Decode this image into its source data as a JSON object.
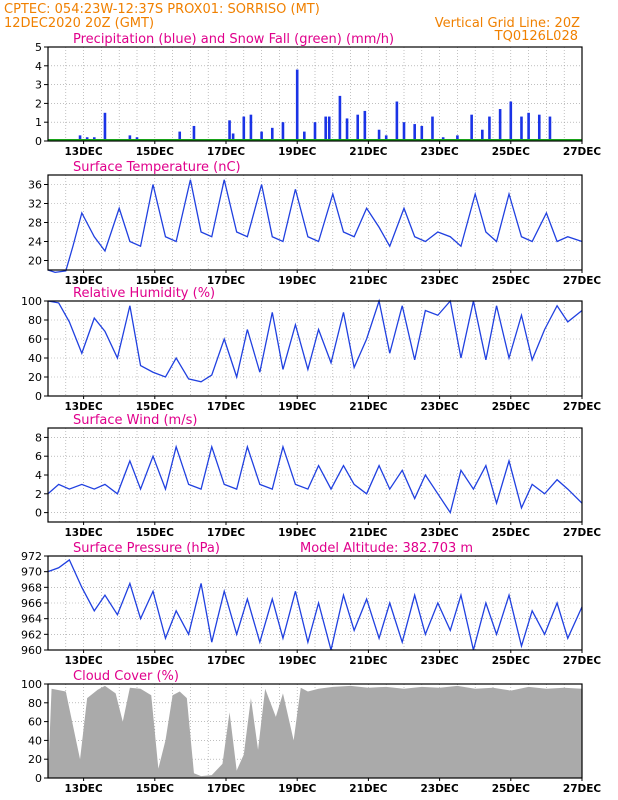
{
  "header": {
    "line1": "CPTEC:   054:23W-12:37S   PROX01: SORRISO (MT)",
    "line2_left": "12DEC2020 20Z (GMT)",
    "line2_right": "Vertical Grid Line: 20Z",
    "run_id": "TQ0126L028"
  },
  "colors": {
    "header": "#f08000",
    "title": "#e0008c",
    "precip": "#1a33e6",
    "snow": "#17a317",
    "line": "#2040e0",
    "cloud": "#aaaaaa"
  },
  "chart_data": [
    {
      "type": "bar",
      "title": "Precipitation (blue) and Snow Fall (green) (mm/h)",
      "categories": [
        "13DEC",
        "15DEC",
        "17DEC",
        "19DEC",
        "21DEC",
        "23DEC",
        "25DEC",
        "27DEC"
      ],
      "ylim": [
        0,
        5
      ],
      "yticks": [
        0,
        1,
        2,
        3,
        4,
        5
      ],
      "x": [
        12.9,
        13.1,
        13.3,
        13.6,
        14.3,
        14.5,
        15.7,
        16.1,
        17.1,
        17.2,
        17.5,
        17.7,
        18.0,
        18.3,
        18.6,
        19.0,
        19.2,
        19.5,
        19.8,
        19.9,
        20.2,
        20.4,
        20.7,
        20.9,
        21.3,
        21.5,
        21.8,
        22.0,
        22.3,
        22.5,
        22.8,
        23.1,
        23.5,
        23.9,
        24.2,
        24.4,
        24.7,
        25.0,
        25.3,
        25.5,
        25.8,
        26.1
      ],
      "series": [
        {
          "name": "Precipitation",
          "values": [
            0.3,
            0.2,
            0.2,
            1.5,
            0.3,
            0.2,
            0.5,
            0.8,
            1.1,
            0.4,
            1.3,
            1.4,
            0.5,
            0.7,
            1.0,
            3.8,
            0.5,
            1.0,
            1.3,
            1.3,
            2.4,
            1.2,
            1.4,
            1.6,
            0.6,
            0.3,
            2.1,
            1.0,
            0.9,
            0.8,
            1.3,
            0.2,
            0.3,
            1.4,
            0.6,
            1.3,
            1.7,
            2.1,
            1.3,
            1.5,
            1.4,
            1.3
          ]
        },
        {
          "name": "Snow Fall",
          "values": [
            0,
            0,
            0,
            0,
            0,
            0,
            0,
            0,
            0,
            0,
            0,
            0,
            0,
            0,
            0,
            0,
            0,
            0,
            0,
            0,
            0,
            0,
            0,
            0,
            0,
            0,
            0,
            0,
            0,
            0,
            0,
            0,
            0,
            0,
            0,
            0,
            0,
            0,
            0,
            0,
            0,
            0
          ]
        }
      ]
    },
    {
      "type": "line",
      "title": "Surface Temperature (nC)",
      "categories": [
        "13DEC",
        "15DEC",
        "17DEC",
        "19DEC",
        "21DEC",
        "23DEC",
        "25DEC",
        "27DEC"
      ],
      "ylim": [
        18,
        38
      ],
      "yticks": [
        20,
        24,
        28,
        32,
        36
      ],
      "x": [
        12.0,
        12.2,
        12.5,
        12.7,
        12.95,
        13.3,
        13.6,
        14.0,
        14.3,
        14.6,
        14.95,
        15.3,
        15.6,
        16.0,
        16.3,
        16.6,
        16.95,
        17.3,
        17.6,
        18.0,
        18.3,
        18.6,
        18.95,
        19.3,
        19.6,
        20.0,
        20.3,
        20.6,
        20.95,
        21.3,
        21.6,
        22.0,
        22.3,
        22.6,
        22.95,
        23.3,
        23.6,
        24.0,
        24.3,
        24.6,
        24.95,
        25.3,
        25.6,
        26.0,
        26.3,
        26.6,
        27.0
      ],
      "series": [
        {
          "name": "Temperature",
          "values": [
            18,
            17.5,
            17.8,
            23,
            30,
            25,
            22,
            31,
            24,
            23,
            36,
            25,
            24,
            37,
            26,
            25,
            37,
            26,
            25,
            36,
            25,
            24,
            35,
            25,
            24,
            34,
            26,
            25,
            31,
            27,
            23,
            31,
            25,
            24,
            26,
            25,
            23,
            34,
            26,
            24,
            34,
            25,
            24,
            30,
            24,
            25,
            24
          ]
        }
      ]
    },
    {
      "type": "line",
      "title": "Relative Humidity (%)",
      "categories": [
        "13DEC",
        "15DEC",
        "17DEC",
        "19DEC",
        "21DEC",
        "23DEC",
        "25DEC",
        "27DEC"
      ],
      "ylim": [
        0,
        100
      ],
      "yticks": [
        0,
        20,
        40,
        60,
        80,
        100
      ],
      "x": [
        12.0,
        12.3,
        12.6,
        12.95,
        13.3,
        13.6,
        13.95,
        14.3,
        14.6,
        14.95,
        15.3,
        15.6,
        15.95,
        16.3,
        16.6,
        16.95,
        17.3,
        17.6,
        17.95,
        18.3,
        18.6,
        18.95,
        19.3,
        19.6,
        19.95,
        20.3,
        20.6,
        20.95,
        21.3,
        21.6,
        21.95,
        22.3,
        22.6,
        22.95,
        23.3,
        23.6,
        23.95,
        24.3,
        24.6,
        24.95,
        25.3,
        25.6,
        25.95,
        26.3,
        26.6,
        27.0
      ],
      "series": [
        {
          "name": "Relative Humidity",
          "values": [
            100,
            98,
            78,
            45,
            82,
            68,
            40,
            95,
            32,
            25,
            20,
            40,
            18,
            15,
            22,
            60,
            20,
            70,
            25,
            88,
            28,
            75,
            28,
            70,
            35,
            88,
            30,
            60,
            100,
            45,
            95,
            38,
            90,
            85,
            100,
            40,
            100,
            38,
            95,
            40,
            85,
            38,
            70,
            95,
            78,
            90
          ]
        }
      ]
    },
    {
      "type": "line",
      "title": "Surface Wind (m/s)",
      "categories": [
        "13DEC",
        "15DEC",
        "17DEC",
        "19DEC",
        "21DEC",
        "23DEC",
        "25DEC",
        "27DEC"
      ],
      "ylim": [
        -1,
        9
      ],
      "yticks": [
        0,
        2,
        4,
        6,
        8
      ],
      "x": [
        12.0,
        12.3,
        12.6,
        12.95,
        13.3,
        13.6,
        13.95,
        14.3,
        14.6,
        14.95,
        15.3,
        15.6,
        15.95,
        16.3,
        16.6,
        16.95,
        17.3,
        17.6,
        17.95,
        18.3,
        18.6,
        18.95,
        19.3,
        19.6,
        19.95,
        20.3,
        20.6,
        20.95,
        21.3,
        21.6,
        21.95,
        22.3,
        22.6,
        22.95,
        23.3,
        23.6,
        23.95,
        24.3,
        24.6,
        24.95,
        25.3,
        25.6,
        25.95,
        26.3,
        26.6,
        27.0
      ],
      "series": [
        {
          "name": "Wind Speed",
          "values": [
            2,
            3,
            2.5,
            3,
            2.5,
            3,
            2,
            5.5,
            2.5,
            6,
            2.5,
            7,
            3,
            2.5,
            7,
            3,
            2.5,
            7,
            3,
            2.5,
            7,
            3,
            2.5,
            5,
            2.5,
            5,
            3,
            2,
            5,
            2.5,
            4.5,
            1.5,
            4,
            2,
            0,
            4.5,
            2.5,
            5,
            1,
            5.5,
            0.5,
            3,
            2,
            3.5,
            2.5,
            1
          ]
        }
      ]
    },
    {
      "type": "line",
      "title": "Surface Pressure (hPa)",
      "annotation": "Model Altitude: 382.703 m",
      "categories": [
        "13DEC",
        "15DEC",
        "17DEC",
        "19DEC",
        "21DEC",
        "23DEC",
        "25DEC",
        "27DEC"
      ],
      "ylim": [
        960,
        972
      ],
      "yticks": [
        960,
        962,
        964,
        966,
        968,
        970,
        972
      ],
      "x": [
        12.0,
        12.3,
        12.6,
        12.95,
        13.3,
        13.6,
        13.95,
        14.3,
        14.6,
        14.95,
        15.3,
        15.6,
        15.95,
        16.3,
        16.6,
        16.95,
        17.3,
        17.6,
        17.95,
        18.3,
        18.6,
        18.95,
        19.3,
        19.6,
        19.95,
        20.3,
        20.6,
        20.95,
        21.3,
        21.6,
        21.95,
        22.3,
        22.6,
        22.95,
        23.3,
        23.6,
        23.95,
        24.3,
        24.6,
        24.95,
        25.3,
        25.6,
        25.95,
        26.3,
        26.6,
        27.0
      ],
      "series": [
        {
          "name": "Pressure",
          "values": [
            970,
            970.5,
            971.5,
            968,
            965,
            967,
            964.5,
            968.5,
            964,
            967.5,
            961.5,
            965,
            962,
            968.5,
            961,
            967.5,
            962,
            966.5,
            961,
            966.5,
            961.5,
            967.5,
            961,
            966,
            960,
            967,
            962.5,
            966.5,
            961.5,
            966,
            961,
            967,
            962,
            966,
            962.5,
            967,
            960,
            966,
            962,
            967,
            960.5,
            965,
            962,
            966,
            961.5,
            965.5
          ]
        }
      ]
    },
    {
      "type": "area",
      "title": "Cloud Cover (%)",
      "categories": [
        "13DEC",
        "15DEC",
        "17DEC",
        "19DEC",
        "21DEC",
        "23DEC",
        "25DEC",
        "27DEC"
      ],
      "ylim": [
        0,
        100
      ],
      "yticks": [
        0,
        20,
        40,
        60,
        80,
        100
      ],
      "x": [
        12.0,
        12.1,
        12.5,
        12.9,
        13.1,
        13.4,
        13.6,
        13.9,
        14.1,
        14.3,
        14.6,
        14.9,
        15.1,
        15.3,
        15.5,
        15.7,
        15.9,
        16.1,
        16.3,
        16.6,
        16.9,
        17.1,
        17.3,
        17.5,
        17.7,
        17.9,
        18.1,
        18.4,
        18.6,
        18.9,
        19.1,
        19.3,
        19.6,
        20.0,
        20.5,
        21.0,
        21.5,
        22.0,
        22.5,
        23.0,
        23.5,
        24.0,
        24.5,
        25.0,
        25.5,
        26.0,
        26.5,
        27.0
      ],
      "series": [
        {
          "name": "Cloud Cover",
          "values": [
            0,
            95,
            92,
            20,
            85,
            94,
            98,
            90,
            60,
            96,
            95,
            88,
            10,
            40,
            88,
            92,
            85,
            5,
            2,
            3,
            15,
            70,
            8,
            25,
            85,
            30,
            95,
            65,
            90,
            40,
            96,
            92,
            95,
            97,
            98,
            96,
            97,
            95,
            97,
            96,
            98,
            95,
            96,
            93,
            97,
            95,
            96,
            95
          ]
        }
      ]
    }
  ]
}
